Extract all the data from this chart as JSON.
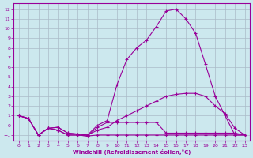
{
  "xlabel": "Windchill (Refroidissement éolien,°C)",
  "bg_color": "#cce8ee",
  "grid_color": "#aabbc8",
  "line_color": "#990099",
  "xlim": [
    -0.5,
    23.5
  ],
  "ylim": [
    -1.6,
    12.6
  ],
  "xticks": [
    0,
    1,
    2,
    3,
    4,
    5,
    6,
    7,
    8,
    9,
    10,
    11,
    12,
    13,
    14,
    15,
    16,
    17,
    18,
    19,
    20,
    21,
    22,
    23
  ],
  "yticks": [
    -1,
    0,
    1,
    2,
    3,
    4,
    5,
    6,
    7,
    8,
    9,
    10,
    11,
    12
  ],
  "curve_top_x": [
    0,
    1,
    2,
    3,
    4,
    5,
    6,
    7,
    8,
    9,
    10,
    11,
    12,
    13,
    14,
    15,
    16,
    17,
    18,
    19,
    20,
    21,
    22,
    23
  ],
  "curve_top_y": [
    1.0,
    0.7,
    -1.0,
    -0.3,
    -0.2,
    -0.8,
    -0.9,
    -1.0,
    0.0,
    0.5,
    4.2,
    6.8,
    8.0,
    8.8,
    10.2,
    11.8,
    12.0,
    11.0,
    9.5,
    6.3,
    3.0,
    1.0,
    -1.0,
    -1.0
  ],
  "curve_mid_x": [
    0,
    1,
    2,
    3,
    4,
    5,
    6,
    7,
    8,
    9,
    10,
    11,
    12,
    13,
    14,
    15,
    16,
    17,
    18,
    19,
    20,
    21,
    22,
    23
  ],
  "curve_mid_y": [
    1.0,
    0.7,
    -1.0,
    -0.3,
    -0.2,
    -0.8,
    -0.9,
    -1.0,
    -0.5,
    -0.2,
    0.5,
    1.0,
    1.5,
    2.0,
    2.5,
    3.0,
    3.2,
    3.3,
    3.3,
    3.0,
    2.0,
    1.2,
    -0.3,
    -1.0
  ],
  "curve_low_x": [
    0,
    1,
    2,
    3,
    4,
    5,
    6,
    7,
    8,
    9,
    10,
    11,
    12,
    13,
    14,
    15,
    16,
    17,
    18,
    19,
    20,
    21,
    22,
    23
  ],
  "curve_low_y": [
    1.0,
    0.7,
    -1.0,
    -0.3,
    -0.5,
    -1.0,
    -1.0,
    -1.1,
    -0.2,
    0.3,
    0.3,
    0.3,
    0.3,
    0.3,
    0.3,
    -0.8,
    -0.8,
    -0.8,
    -0.8,
    -0.8,
    -0.8,
    -0.8,
    -0.8,
    -1.0
  ],
  "curve_flat_x": [
    0,
    1,
    2,
    3,
    4,
    5,
    6,
    7,
    8,
    9,
    10,
    11,
    12,
    13,
    14,
    15,
    16,
    17,
    18,
    19,
    20,
    21,
    22,
    23
  ],
  "curve_flat_y": [
    1.0,
    0.7,
    -1.0,
    -0.3,
    -0.5,
    -1.0,
    -1.0,
    -1.1,
    -1.0,
    -1.0,
    -1.0,
    -1.0,
    -1.0,
    -1.0,
    -1.0,
    -1.0,
    -1.0,
    -1.0,
    -1.0,
    -1.0,
    -1.0,
    -1.0,
    -1.0,
    -1.0
  ]
}
